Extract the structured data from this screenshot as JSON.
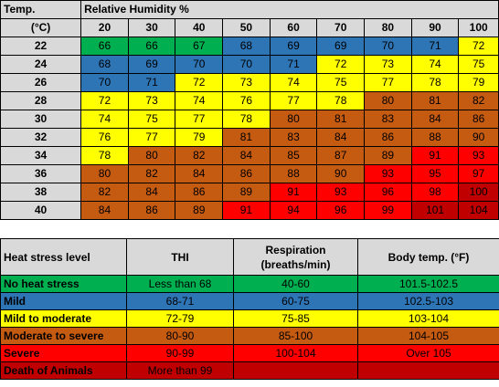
{
  "grid": {
    "temp_header": "Temp.",
    "unit_header": "(°C)",
    "rh_header": "Relative Humidity %",
    "humidity_levels": [
      "20",
      "30",
      "40",
      "50",
      "60",
      "70",
      "80",
      "90",
      "100"
    ],
    "rows": [
      {
        "temp": "22",
        "values": [
          "66",
          "66",
          "67",
          "68",
          "69",
          "69",
          "70",
          "71",
          "72"
        ],
        "colors": [
          "green",
          "green",
          "green",
          "blue",
          "blue",
          "blue",
          "blue",
          "blue",
          "yellow"
        ]
      },
      {
        "temp": "24",
        "values": [
          "68",
          "69",
          "70",
          "70",
          "71",
          "72",
          "73",
          "74",
          "75"
        ],
        "colors": [
          "blue",
          "blue",
          "blue",
          "blue",
          "blue",
          "yellow",
          "yellow",
          "yellow",
          "yellow"
        ]
      },
      {
        "temp": "26",
        "values": [
          "70",
          "71",
          "72",
          "73",
          "74",
          "75",
          "77",
          "78",
          "79"
        ],
        "colors": [
          "blue",
          "blue",
          "yellow",
          "yellow",
          "yellow",
          "yellow",
          "yellow",
          "yellow",
          "yellow"
        ]
      },
      {
        "temp": "28",
        "values": [
          "72",
          "73",
          "74",
          "76",
          "77",
          "78",
          "80",
          "81",
          "82"
        ],
        "colors": [
          "yellow",
          "yellow",
          "yellow",
          "yellow",
          "yellow",
          "yellow",
          "orange",
          "orange",
          "orange"
        ]
      },
      {
        "temp": "30",
        "values": [
          "74",
          "75",
          "77",
          "78",
          "80",
          "81",
          "83",
          "84",
          "86"
        ],
        "colors": [
          "yellow",
          "yellow",
          "yellow",
          "yellow",
          "orange",
          "orange",
          "orange",
          "orange",
          "orange"
        ]
      },
      {
        "temp": "32",
        "values": [
          "76",
          "77",
          "79",
          "81",
          "83",
          "84",
          "86",
          "88",
          "90"
        ],
        "colors": [
          "yellow",
          "yellow",
          "yellow",
          "orange",
          "orange",
          "orange",
          "orange",
          "orange",
          "orange"
        ]
      },
      {
        "temp": "34",
        "values": [
          "78",
          "80",
          "82",
          "84",
          "85",
          "87",
          "89",
          "91",
          "93"
        ],
        "colors": [
          "yellow",
          "orange",
          "orange",
          "orange",
          "orange",
          "orange",
          "orange",
          "red",
          "red"
        ]
      },
      {
        "temp": "36",
        "values": [
          "80",
          "82",
          "84",
          "86",
          "88",
          "90",
          "93",
          "95",
          "97"
        ],
        "colors": [
          "orange",
          "orange",
          "orange",
          "orange",
          "orange",
          "orange",
          "red",
          "red",
          "red"
        ]
      },
      {
        "temp": "38",
        "values": [
          "82",
          "84",
          "86",
          "89",
          "91",
          "93",
          "96",
          "98",
          "100"
        ],
        "colors": [
          "orange",
          "orange",
          "orange",
          "orange",
          "red",
          "red",
          "red",
          "red",
          "dred"
        ]
      },
      {
        "temp": "40",
        "values": [
          "84",
          "86",
          "89",
          "91",
          "94",
          "96",
          "99",
          "101",
          "104"
        ],
        "colors": [
          "orange",
          "orange",
          "orange",
          "red",
          "red",
          "red",
          "red",
          "dred",
          "dred"
        ]
      }
    ]
  },
  "legend": {
    "headers": {
      "level": "Heat stress level",
      "thi": "THI",
      "respiration_line1": "Respiration",
      "respiration_line2": "(breaths/min)",
      "body_temp": "Body temp. (°F)"
    },
    "rows": [
      {
        "level": "No heat stress",
        "thi": "Less than 68",
        "respiration": "40-60",
        "body_temp": "101.5-102.5",
        "color": "green"
      },
      {
        "level": "Mild",
        "thi": "68-71",
        "respiration": "60-75",
        "body_temp": "102.5-103",
        "color": "blue"
      },
      {
        "level": "Mild to moderate",
        "thi": "72-79",
        "respiration": "75-85",
        "body_temp": "103-104",
        "color": "yellow"
      },
      {
        "level": "Moderate to severe",
        "thi": "80-90",
        "respiration": "85-100",
        "body_temp": "104-105",
        "color": "orange"
      },
      {
        "level": "Severe",
        "thi": "90-99",
        "respiration": "100-104",
        "body_temp": "Over 105",
        "color": "red"
      },
      {
        "level": "Death of Animals",
        "thi": "More than 99",
        "respiration": "",
        "body_temp": "",
        "color": "dred"
      }
    ]
  },
  "colors": {
    "green": "#00b050",
    "blue": "#2e75b6",
    "yellow": "#ffff00",
    "orange": "#c55a11",
    "red": "#ff0000",
    "dred": "#c00000",
    "header": "#d9d9d9"
  }
}
